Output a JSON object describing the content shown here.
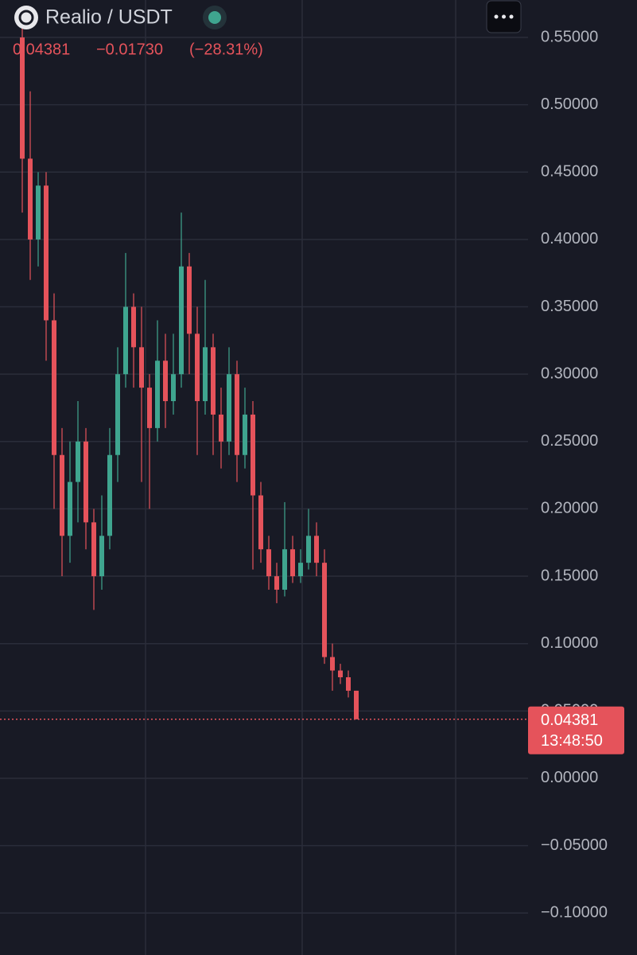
{
  "chart_data": {
    "type": "candlestick",
    "title": "Realio / USDT",
    "last_price": 0.04381,
    "change": "−0.01730",
    "change_pct": "(−28.31%)",
    "last_time": "13:48:50",
    "up_color": "#3fa58f",
    "down_color": "#e5535b",
    "grid": true,
    "ylim": [
      -0.1312,
      0.5778
    ],
    "yticks": [
      {
        "value": 0.55,
        "label": "0.55000"
      },
      {
        "value": 0.5,
        "label": "0.50000"
      },
      {
        "value": 0.45,
        "label": "0.45000"
      },
      {
        "value": 0.4,
        "label": "0.40000"
      },
      {
        "value": 0.35,
        "label": "0.35000"
      },
      {
        "value": 0.3,
        "label": "0.30000"
      },
      {
        "value": 0.25,
        "label": "0.25000"
      },
      {
        "value": 0.2,
        "label": "0.20000"
      },
      {
        "value": 0.15,
        "label": "0.15000"
      },
      {
        "value": 0.1,
        "label": "0.10000"
      },
      {
        "value": 0.05,
        "label": "0.05000"
      },
      {
        "value": 0,
        "label": "0.00000"
      },
      {
        "value": -0.05,
        "label": "−0.05000"
      },
      {
        "value": -0.1,
        "label": "−0.10000"
      }
    ],
    "open": [
      0.55,
      0.46,
      0.4,
      0.44,
      0.34,
      0.24,
      0.18,
      0.22,
      0.25,
      0.19,
      0.15,
      0.18,
      0.24,
      0.3,
      0.35,
      0.32,
      0.29,
      0.26,
      0.31,
      0.28,
      0.3,
      0.38,
      0.33,
      0.28,
      0.32,
      0.27,
      0.25,
      0.3,
      0.24,
      0.27,
      0.21,
      0.17,
      0.15,
      0.14,
      0.17,
      0.15,
      0.16,
      0.18,
      0.16,
      0.09,
      0.08,
      0.075,
      0.065
    ],
    "high": [
      0.57,
      0.51,
      0.45,
      0.45,
      0.36,
      0.26,
      0.25,
      0.28,
      0.26,
      0.2,
      0.21,
      0.26,
      0.32,
      0.39,
      0.36,
      0.35,
      0.3,
      0.34,
      0.33,
      0.33,
      0.42,
      0.39,
      0.35,
      0.37,
      0.33,
      0.29,
      0.32,
      0.31,
      0.29,
      0.28,
      0.22,
      0.18,
      0.16,
      0.205,
      0.18,
      0.17,
      0.2,
      0.19,
      0.17,
      0.1,
      0.085,
      0.08,
      0.065
    ],
    "low": [
      0.42,
      0.37,
      0.38,
      0.31,
      0.2,
      0.15,
      0.16,
      0.19,
      0.17,
      0.125,
      0.14,
      0.17,
      0.22,
      0.29,
      0.29,
      0.22,
      0.2,
      0.25,
      0.26,
      0.27,
      0.29,
      0.3,
      0.24,
      0.27,
      0.24,
      0.23,
      0.24,
      0.22,
      0.23,
      0.155,
      0.16,
      0.14,
      0.13,
      0.135,
      0.145,
      0.145,
      0.155,
      0.15,
      0.085,
      0.065,
      0.07,
      0.06,
      0.04381
    ],
    "close": [
      0.46,
      0.4,
      0.44,
      0.34,
      0.24,
      0.18,
      0.22,
      0.25,
      0.19,
      0.15,
      0.18,
      0.24,
      0.3,
      0.35,
      0.32,
      0.29,
      0.26,
      0.31,
      0.28,
      0.3,
      0.38,
      0.33,
      0.28,
      0.32,
      0.27,
      0.25,
      0.3,
      0.24,
      0.27,
      0.21,
      0.17,
      0.15,
      0.14,
      0.17,
      0.15,
      0.16,
      0.18,
      0.16,
      0.09,
      0.08,
      0.075,
      0.065,
      0.04381
    ]
  }
}
